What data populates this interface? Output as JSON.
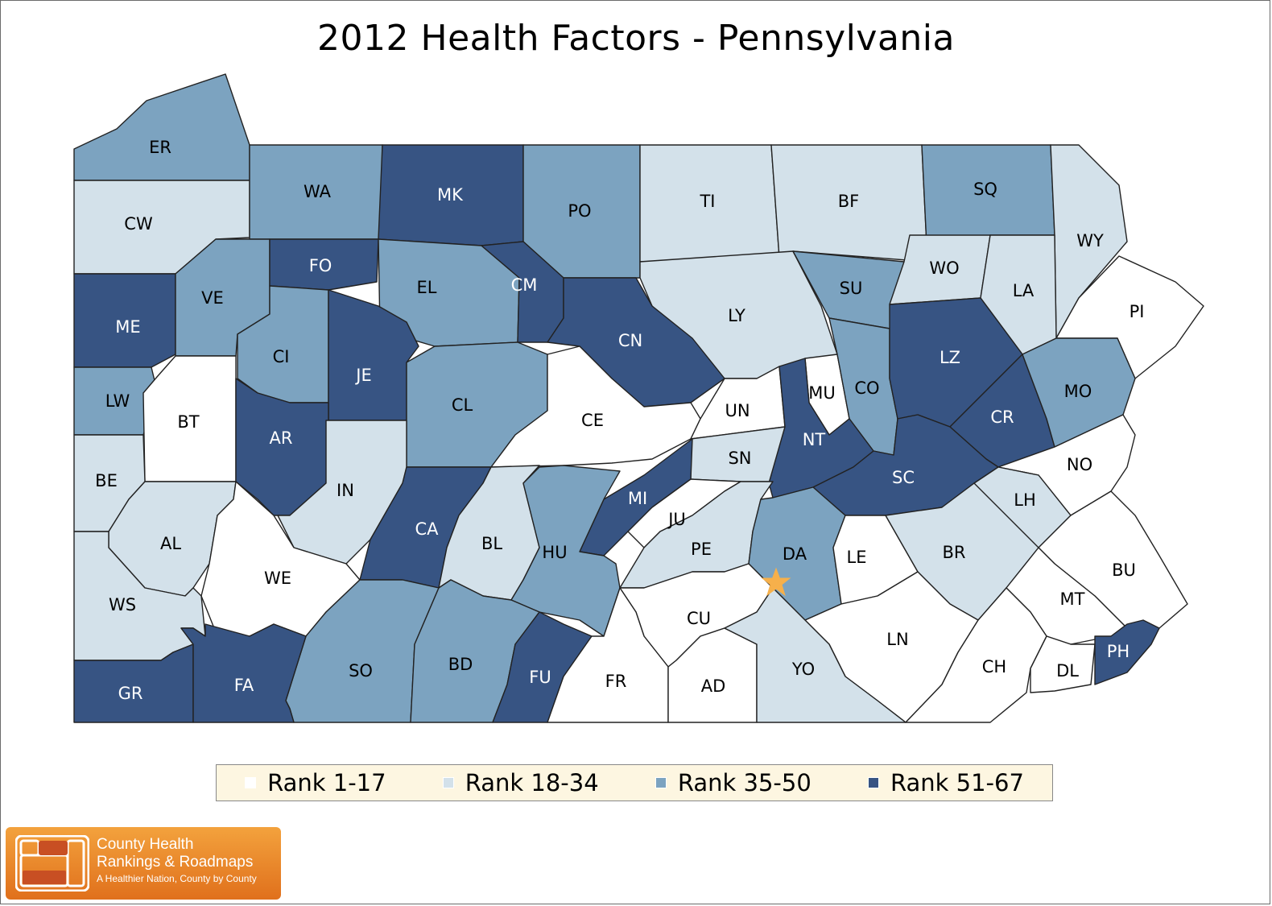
{
  "title": "2012 Health Factors - Pennsylvania",
  "legend": {
    "items": [
      {
        "label": "Rank 1-17",
        "color": "#ffffff"
      },
      {
        "label": "Rank 18-34",
        "color": "#d3e1ea"
      },
      {
        "label": "Rank 35-50",
        "color": "#7ca3c0"
      },
      {
        "label": "Rank 51-67",
        "color": "#375483"
      }
    ]
  },
  "marker": {
    "type": "star",
    "color": "#f6b04b",
    "icon": "capital-star-icon"
  },
  "counties": [
    {
      "code": "ER",
      "tier": 2
    },
    {
      "code": "CW",
      "tier": 1
    },
    {
      "code": "WA",
      "tier": 2
    },
    {
      "code": "MK",
      "tier": 3
    },
    {
      "code": "PO",
      "tier": 2
    },
    {
      "code": "TI",
      "tier": 1
    },
    {
      "code": "BF",
      "tier": 1
    },
    {
      "code": "SQ",
      "tier": 2
    },
    {
      "code": "WY",
      "tier": 1
    },
    {
      "code": "ME",
      "tier": 3
    },
    {
      "code": "VE",
      "tier": 2
    },
    {
      "code": "FO",
      "tier": 3
    },
    {
      "code": "EL",
      "tier": 2
    },
    {
      "code": "CM",
      "tier": 3
    },
    {
      "code": "LY",
      "tier": 1
    },
    {
      "code": "SU",
      "tier": 2
    },
    {
      "code": "WO",
      "tier": 1
    },
    {
      "code": "LA",
      "tier": 1
    },
    {
      "code": "PI",
      "tier": 0
    },
    {
      "code": "LW",
      "tier": 2
    },
    {
      "code": "BT",
      "tier": 0
    },
    {
      "code": "CI",
      "tier": 2
    },
    {
      "code": "JE",
      "tier": 3
    },
    {
      "code": "CL",
      "tier": 2
    },
    {
      "code": "CN",
      "tier": 3
    },
    {
      "code": "CE",
      "tier": 0
    },
    {
      "code": "UN",
      "tier": 0
    },
    {
      "code": "MU",
      "tier": 0
    },
    {
      "code": "CO",
      "tier": 2
    },
    {
      "code": "LZ",
      "tier": 3
    },
    {
      "code": "CR",
      "tier": 3
    },
    {
      "code": "MO",
      "tier": 2
    },
    {
      "code": "AR",
      "tier": 3
    },
    {
      "code": "IN",
      "tier": 1
    },
    {
      "code": "BE",
      "tier": 1
    },
    {
      "code": "SN",
      "tier": 1
    },
    {
      "code": "NT",
      "tier": 3
    },
    {
      "code": "SC",
      "tier": 3
    },
    {
      "code": "NO",
      "tier": 0
    },
    {
      "code": "AL",
      "tier": 1
    },
    {
      "code": "CA",
      "tier": 3
    },
    {
      "code": "BL",
      "tier": 1
    },
    {
      "code": "MI",
      "tier": 3
    },
    {
      "code": "JU",
      "tier": 0
    },
    {
      "code": "HU",
      "tier": 2
    },
    {
      "code": "PE",
      "tier": 1
    },
    {
      "code": "DA",
      "tier": 2
    },
    {
      "code": "LE",
      "tier": 0
    },
    {
      "code": "BR",
      "tier": 1
    },
    {
      "code": "LH",
      "tier": 1
    },
    {
      "code": "BU",
      "tier": 0
    },
    {
      "code": "WE",
      "tier": 0
    },
    {
      "code": "WS",
      "tier": 1
    },
    {
      "code": "MT",
      "tier": 0
    },
    {
      "code": "CU",
      "tier": 0
    },
    {
      "code": "LN",
      "tier": 0
    },
    {
      "code": "SO",
      "tier": 2
    },
    {
      "code": "BD",
      "tier": 2
    },
    {
      "code": "FU",
      "tier": 3
    },
    {
      "code": "FR",
      "tier": 0
    },
    {
      "code": "AD",
      "tier": 0
    },
    {
      "code": "YO",
      "tier": 1
    },
    {
      "code": "CH",
      "tier": 0
    },
    {
      "code": "DL",
      "tier": 0
    },
    {
      "code": "PH",
      "tier": 3
    },
    {
      "code": "GR",
      "tier": 3
    },
    {
      "code": "FA",
      "tier": 3
    }
  ],
  "brand": {
    "line1": "County Health",
    "line2": "Rankings & Roadmaps",
    "line3": "A Healthier Nation, County by County"
  }
}
